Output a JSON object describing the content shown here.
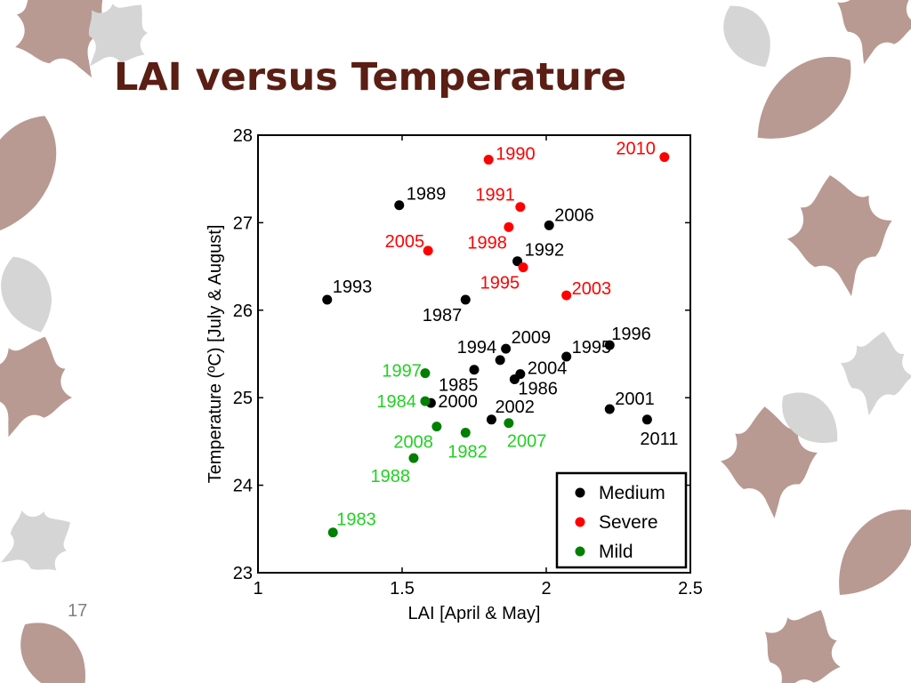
{
  "slide": {
    "title": "LAI versus Temperature",
    "page_number": "17"
  },
  "colors": {
    "title": "#5a1e14",
    "leaf": "#b89a92",
    "medium": "#000000",
    "severe": "#ff0000",
    "mild": "#008000",
    "mild_label": "#22d022"
  },
  "chart_data": {
    "type": "scatter",
    "xlabel": "LAI [April & May]",
    "ylabel": "Temperature (ºC) [July & August]",
    "xlim": [
      1,
      2.5
    ],
    "ylim": [
      23,
      28
    ],
    "xticks": [
      1,
      1.5,
      2,
      2.5
    ],
    "yticks": [
      23,
      24,
      25,
      26,
      27,
      28
    ],
    "legend_position": "bottom-right",
    "series": [
      {
        "name": "Medium",
        "color": "#000000",
        "points": [
          {
            "label": "1989",
            "x": 1.49,
            "y": 27.2
          },
          {
            "label": "2006",
            "x": 2.01,
            "y": 26.97
          },
          {
            "label": "1992",
            "x": 1.9,
            "y": 26.56
          },
          {
            "label": "1993",
            "x": 1.24,
            "y": 26.12
          },
          {
            "label": "1987",
            "x": 1.72,
            "y": 26.12
          },
          {
            "label": "2009",
            "x": 1.86,
            "y": 25.56
          },
          {
            "label": "1996",
            "x": 2.22,
            "y": 25.6
          },
          {
            "label": "1995",
            "x": 2.07,
            "y": 25.47
          },
          {
            "label": "1994",
            "x": 1.84,
            "y": 25.43
          },
          {
            "label": "1985",
            "x": 1.75,
            "y": 25.32
          },
          {
            "label": "2004",
            "x": 1.91,
            "y": 25.27
          },
          {
            "label": "1986",
            "x": 1.89,
            "y": 25.21
          },
          {
            "label": "2000",
            "x": 1.6,
            "y": 24.94
          },
          {
            "label": "2002",
            "x": 1.81,
            "y": 24.75
          },
          {
            "label": "2001",
            "x": 2.22,
            "y": 24.87
          },
          {
            "label": "2011",
            "x": 2.35,
            "y": 24.75
          }
        ]
      },
      {
        "name": "Severe",
        "color": "#ff0000",
        "points": [
          {
            "label": "1990",
            "x": 1.8,
            "y": 27.72
          },
          {
            "label": "2010",
            "x": 2.41,
            "y": 27.75
          },
          {
            "label": "1991",
            "x": 1.91,
            "y": 27.18
          },
          {
            "label": "1998",
            "x": 1.87,
            "y": 26.95
          },
          {
            "label": "2005",
            "x": 1.59,
            "y": 26.68
          },
          {
            "label": "1995",
            "x": 1.92,
            "y": 26.49
          },
          {
            "label": "2003",
            "x": 2.07,
            "y": 26.17
          }
        ]
      },
      {
        "name": "Mild",
        "color": "#008000",
        "points": [
          {
            "label": "1997",
            "x": 1.58,
            "y": 25.28
          },
          {
            "label": "1984",
            "x": 1.58,
            "y": 24.96
          },
          {
            "label": "2008",
            "x": 1.62,
            "y": 24.67
          },
          {
            "label": "1982",
            "x": 1.72,
            "y": 24.6
          },
          {
            "label": "2007",
            "x": 1.87,
            "y": 24.71
          },
          {
            "label": "1988",
            "x": 1.54,
            "y": 24.31
          },
          {
            "label": "1983",
            "x": 1.26,
            "y": 23.46
          }
        ]
      }
    ]
  }
}
